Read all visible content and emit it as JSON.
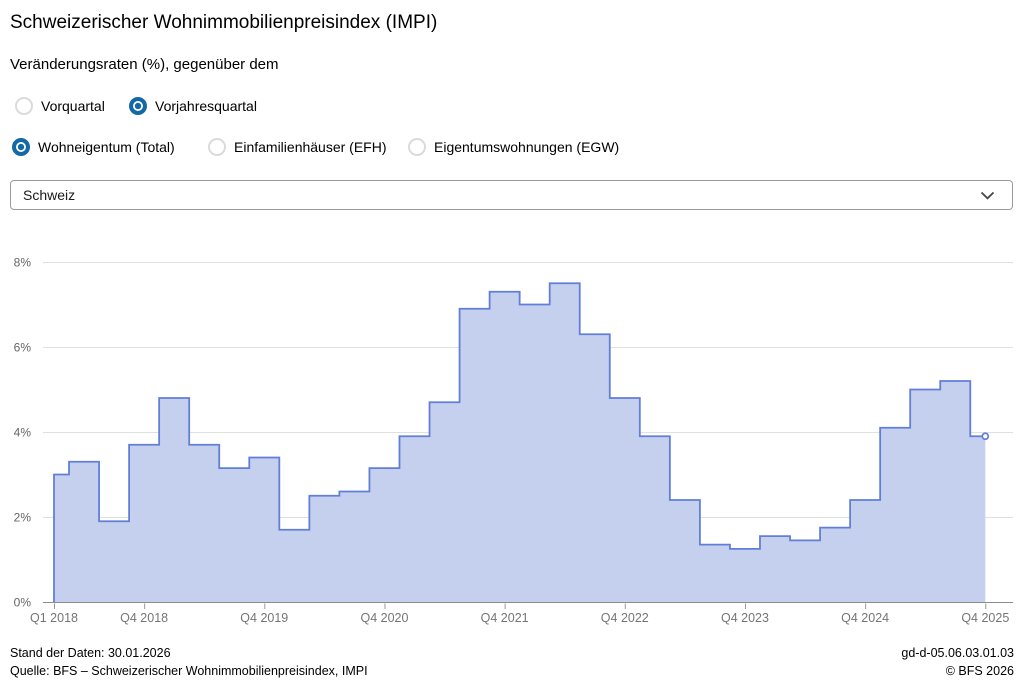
{
  "header": {
    "title": "Schweizerischer Wohnimmobilienpreisindex (IMPI)",
    "subtitle": "Veränderungsraten (%), gegenüber dem"
  },
  "controls": {
    "comparison": {
      "options": [
        {
          "label": "Vorquartal",
          "selected": false
        },
        {
          "label": "Vorjahresquartal",
          "selected": true
        }
      ]
    },
    "category": {
      "options": [
        {
          "label": "Wohneigentum (Total)",
          "selected": true
        },
        {
          "label": "Einfamilienhäuser (EFH)",
          "selected": false
        },
        {
          "label": "Eigentumswohnungen (EGW)",
          "selected": false
        }
      ]
    },
    "region": {
      "value": "Schweiz"
    }
  },
  "chart_data": {
    "type": "step-area",
    "unit": "%",
    "quarters": [
      "Q1 2018",
      "Q2 2018",
      "Q3 2018",
      "Q4 2018",
      "Q1 2019",
      "Q2 2019",
      "Q3 2019",
      "Q4 2019",
      "Q1 2020",
      "Q2 2020",
      "Q3 2020",
      "Q4 2020",
      "Q1 2021",
      "Q2 2021",
      "Q3 2021",
      "Q4 2021",
      "Q1 2022",
      "Q2 2022",
      "Q3 2022",
      "Q4 2022",
      "Q1 2023",
      "Q2 2023",
      "Q3 2023",
      "Q4 2023",
      "Q1 2024",
      "Q2 2024",
      "Q3 2024",
      "Q4 2024",
      "Q1 2025",
      "Q2 2025",
      "Q3 2025",
      "Q4 2025"
    ],
    "values": [
      3.0,
      3.3,
      1.9,
      3.7,
      4.8,
      3.7,
      3.15,
      3.4,
      1.7,
      2.5,
      2.6,
      3.15,
      3.9,
      4.7,
      6.9,
      7.3,
      7.0,
      7.5,
      6.3,
      4.8,
      3.9,
      2.4,
      1.35,
      1.25,
      1.55,
      1.45,
      1.75,
      2.4,
      4.1,
      5.0,
      5.2,
      3.9
    ],
    "ylim": [
      0,
      8
    ],
    "yticks": [
      0,
      2,
      4,
      6,
      8
    ],
    "ytick_suffix": "%",
    "x_ticks": [
      {
        "index": 0,
        "label": "Q1 2018"
      },
      {
        "index": 3,
        "label": "Q4 2018"
      },
      {
        "index": 7,
        "label": "Q4 2019"
      },
      {
        "index": 11,
        "label": "Q4 2020"
      },
      {
        "index": 15,
        "label": "Q4 2021"
      },
      {
        "index": 19,
        "label": "Q4 2022"
      },
      {
        "index": 23,
        "label": "Q4 2023"
      },
      {
        "index": 27,
        "label": "Q4 2024"
      },
      {
        "index": 31,
        "label": "Q4 2025"
      }
    ],
    "last_point_marker": "open-circle"
  },
  "footer": {
    "stand": "Stand der Daten: 30.01.2026",
    "quelle": "Quelle: BFS – Schweizerischer Wohnimmobilienpreisindex, IMPI",
    "code": "gd-d-05.06.03.01.03",
    "copyright": "© BFS 2026"
  },
  "colors": {
    "accent": "#1269a5",
    "line": "#617fd6",
    "fill": "#c5cfee",
    "grid": "#e0e0e0",
    "axis": "#8c8c8c",
    "axis_label": "#757575",
    "ylabel": "#666666"
  }
}
